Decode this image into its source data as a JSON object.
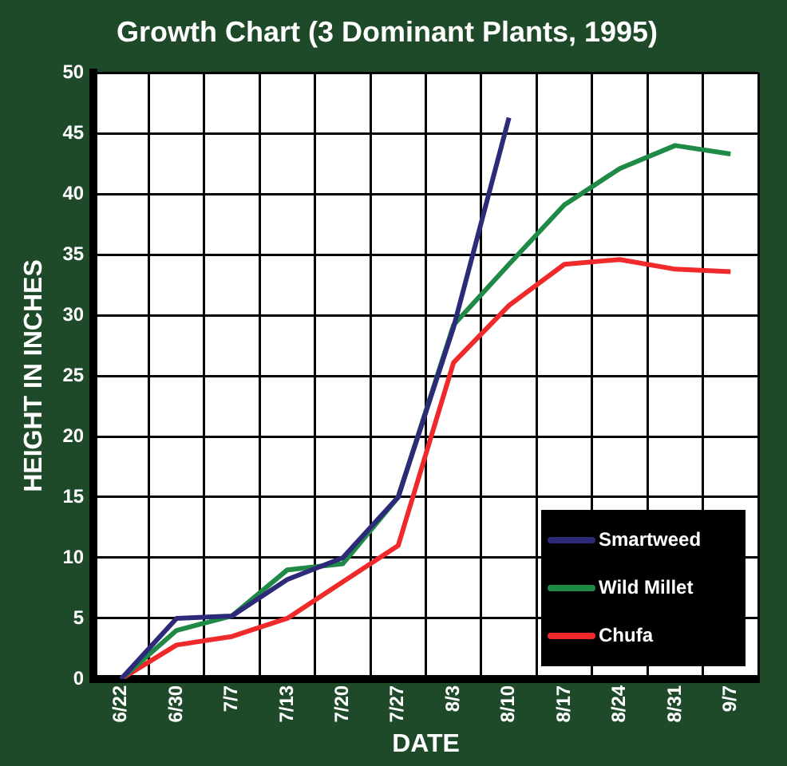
{
  "chart_data": {
    "type": "line",
    "title": "Growth Chart (3 Dominant Plants, 1995)",
    "xlabel": "DATE",
    "ylabel": "HEIGHT IN INCHES",
    "categories": [
      "6/22",
      "6/30",
      "7/7",
      "7/13",
      "7/20",
      "7/27",
      "8/3",
      "8/10",
      "8/17",
      "8/24",
      "8/31",
      "9/7"
    ],
    "series": [
      {
        "name": "Smartweed",
        "color": "#2e2a7a",
        "values": [
          0,
          5,
          5.2,
          8.2,
          10,
          15,
          29,
          46.3,
          null,
          null,
          null,
          null
        ]
      },
      {
        "name": "Wild Millet",
        "color": "#1e8a45",
        "values": [
          0,
          4,
          5.2,
          9,
          9.5,
          15,
          29.2,
          34.2,
          39.1,
          42.1,
          44,
          43.3
        ]
      },
      {
        "name": "Chufa",
        "color": "#f02a2a",
        "values": [
          0,
          2.8,
          3.5,
          5,
          8,
          11,
          26.1,
          30.8,
          34.2,
          34.6,
          33.8,
          33.6
        ]
      }
    ],
    "ylim": [
      0,
      50
    ],
    "yticks": [
      0,
      5,
      10,
      15,
      20,
      25,
      30,
      35,
      40,
      45,
      50
    ],
    "grid": true,
    "legend": "bottom right",
    "marker": "none",
    "line_style": "solid"
  }
}
